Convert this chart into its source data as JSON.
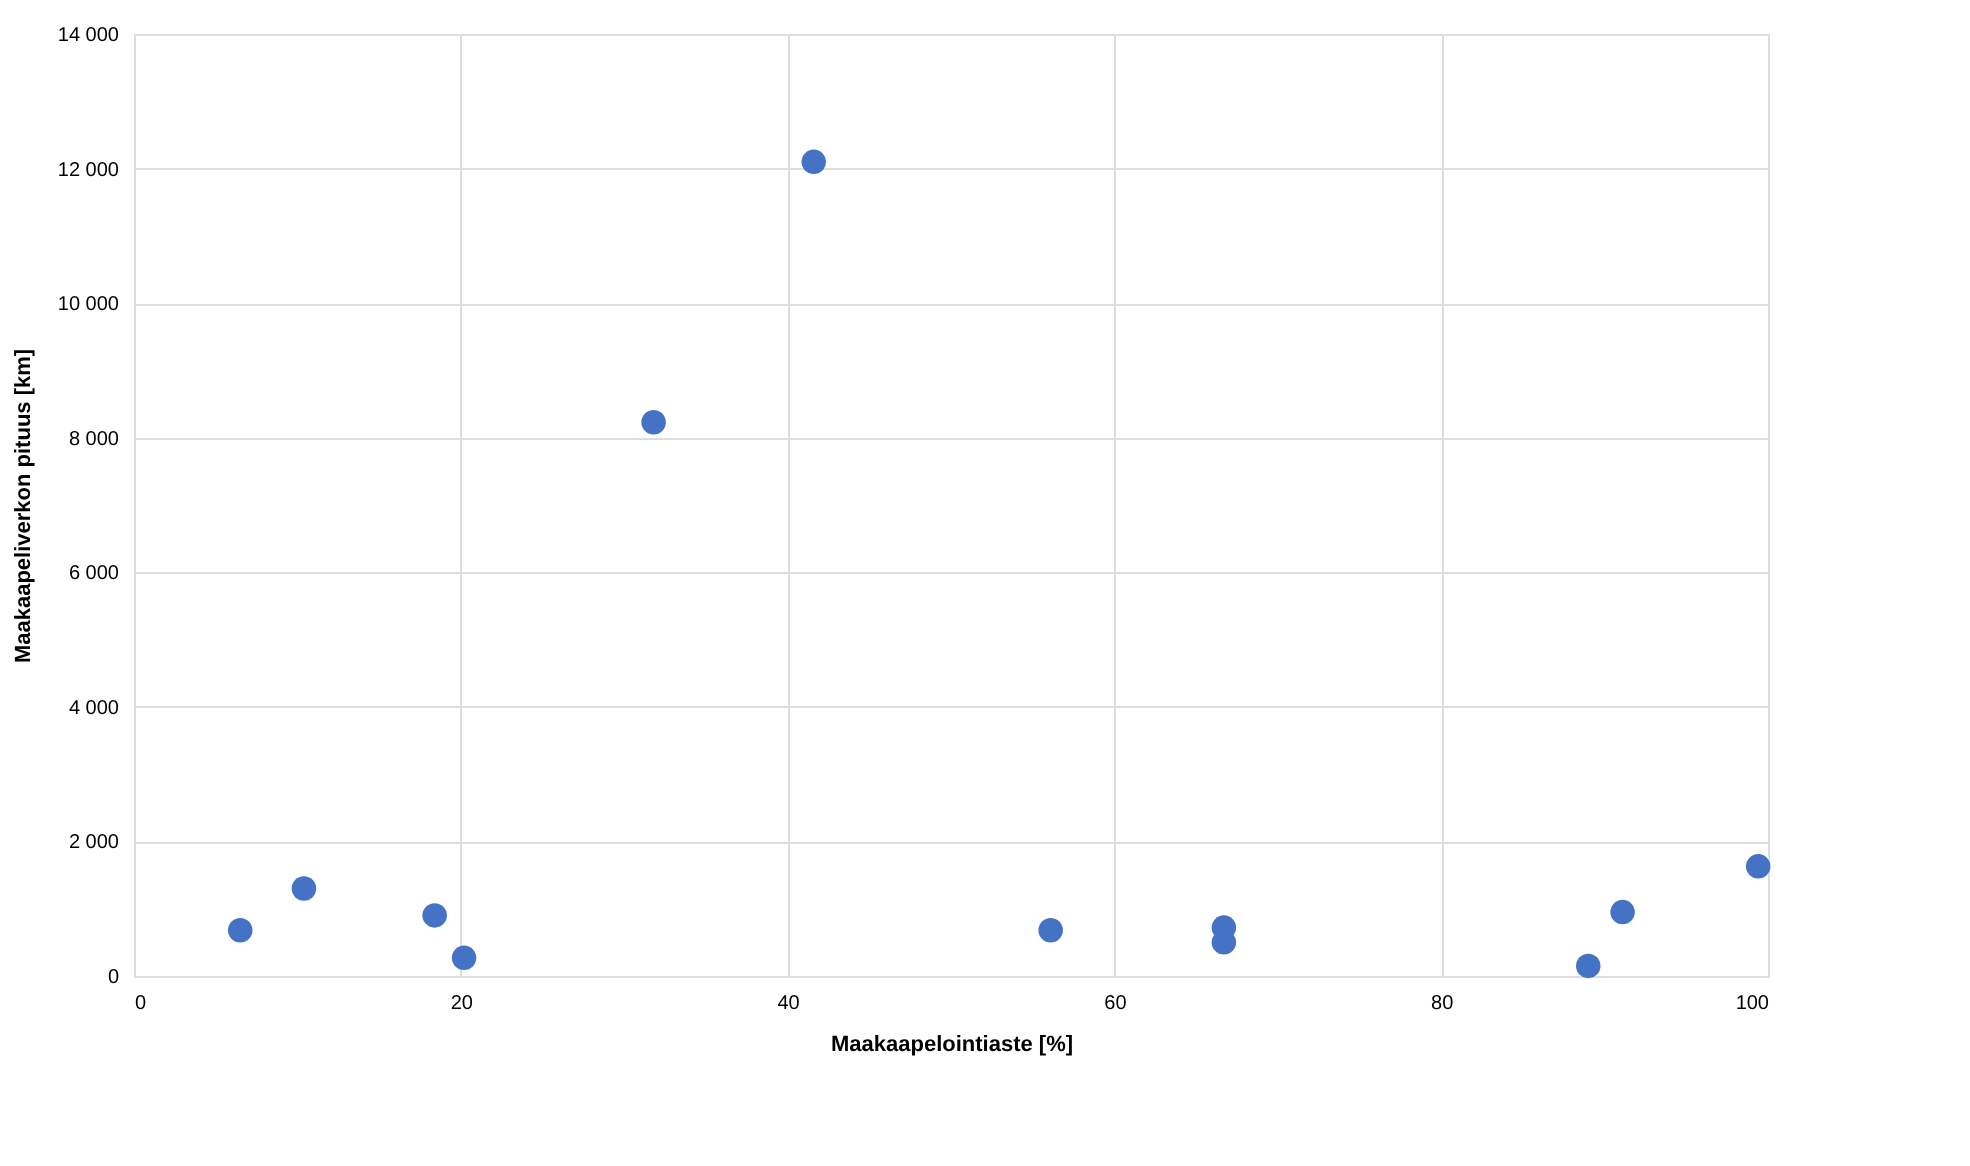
{
  "chart_data": {
    "type": "scatter",
    "xlabel": "Maakaapelointiaste [%]",
    "ylabel": "Maakaapeliverkon pituus [km]",
    "x": [
      6.5,
      10.4,
      18.4,
      20.2,
      31.8,
      41.6,
      56.1,
      66.7,
      66.7,
      89.0,
      91.1,
      99.4
    ],
    "series": [
      {
        "color": "#4472c4",
        "values": [
          680,
          1300,
          900,
          270,
          8230,
          12100,
          680,
          720,
          500,
          150,
          950,
          1630
        ]
      }
    ],
    "xlim": [
      0,
      100
    ],
    "xticks": [
      0,
      20,
      40,
      60,
      80,
      100
    ],
    "ylim": [
      0,
      14000
    ],
    "yticks": [
      {
        "value": 0,
        "label": "0"
      },
      {
        "value": 2000,
        "label": "2 000"
      },
      {
        "value": 4000,
        "label": "4 000"
      },
      {
        "value": 6000,
        "label": "6 000"
      },
      {
        "value": 8000,
        "label": "8 000"
      },
      {
        "value": 10000,
        "label": "10 000"
      },
      {
        "value": 12000,
        "label": "12 000"
      },
      {
        "value": 14000,
        "label": "14 000"
      }
    ],
    "grid": true,
    "marker": "circle",
    "legend": false
  }
}
